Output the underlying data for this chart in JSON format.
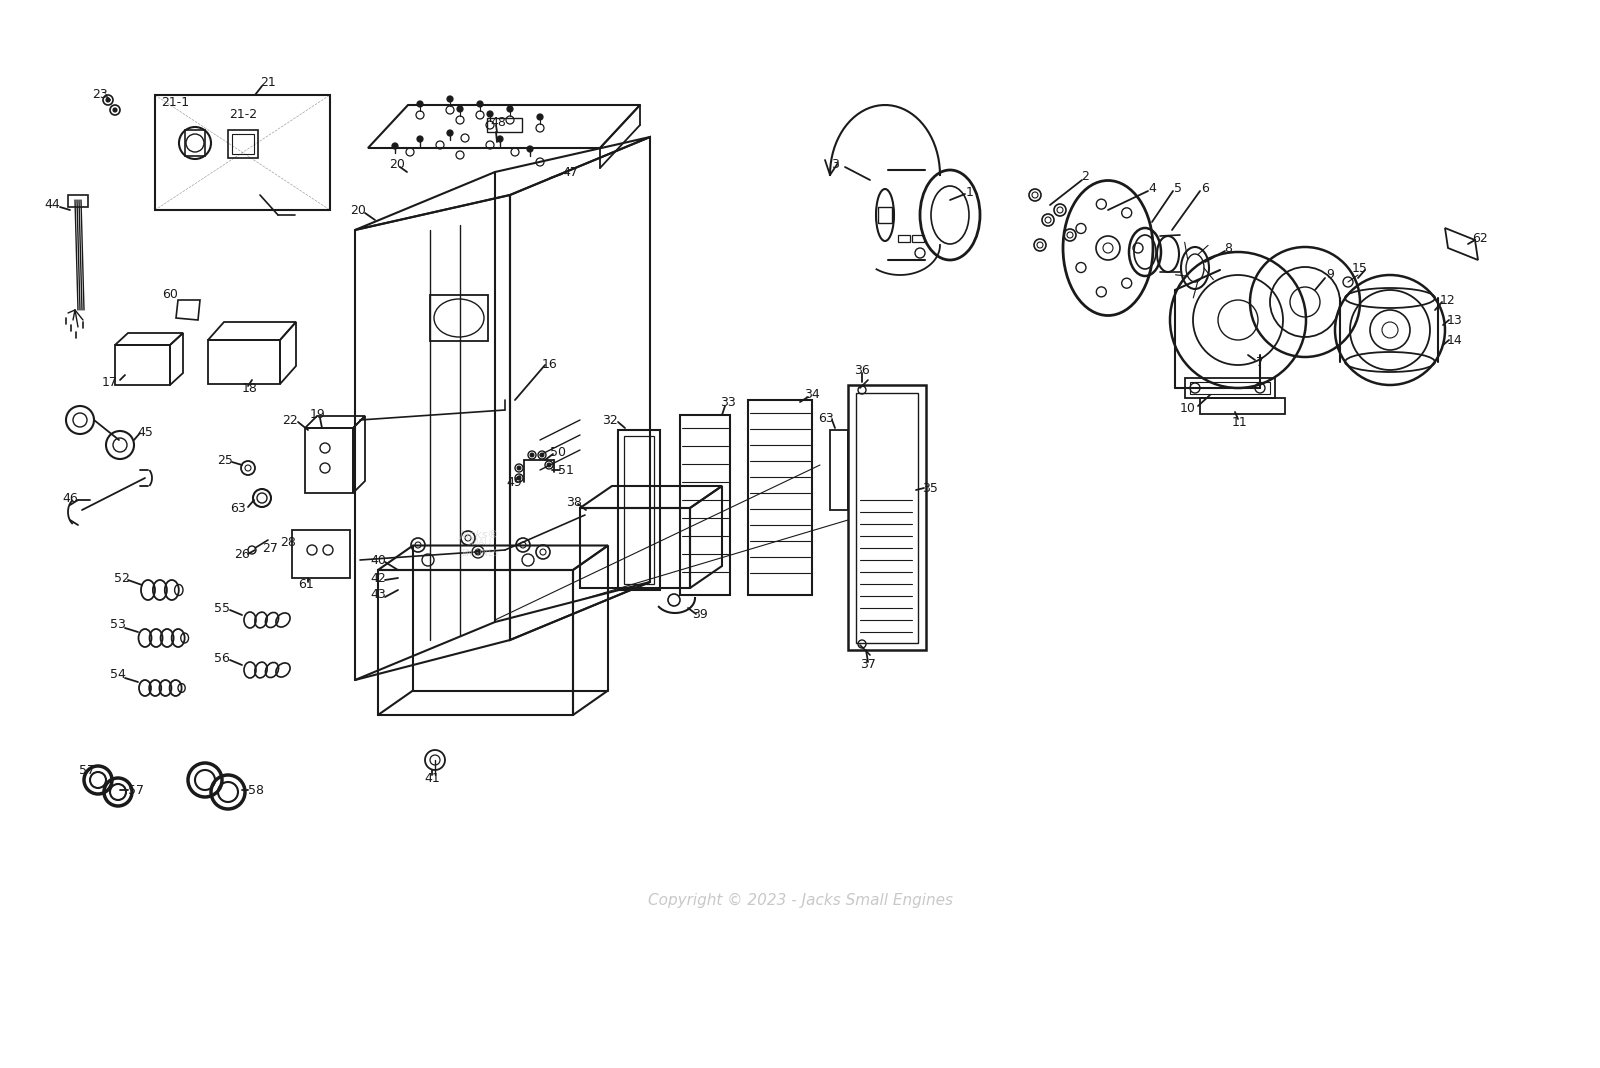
{
  "background_color": "#ffffff",
  "line_color": "#1a1a1a",
  "watermark_text": "Copyright © 2023 - Jacks Small Engines",
  "fig_width": 16.0,
  "fig_height": 10.68,
  "dpi": 100
}
